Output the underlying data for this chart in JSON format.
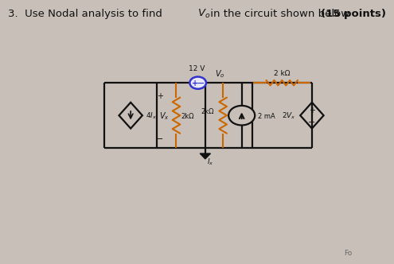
{
  "bg_color": "#c8c0b8",
  "title": "3.  Use Nodal analysis to find $V_o$ in the circuit shown below (\\mathbf{15 points})",
  "circuit": {
    "L": 0.22,
    "R": 0.93,
    "T": 0.68,
    "B": 0.38,
    "M1": 0.4,
    "M2": 0.565,
    "M3": 0.725
  },
  "wire_color": "#111111",
  "resistor_color_v": "#cc6600",
  "resistor_color_h": "#cc6600",
  "source_12v_color": "#3333cc",
  "source_circle_color": "#3333cc",
  "diamond_color": "#111111",
  "current_arrow_color": "#111111"
}
